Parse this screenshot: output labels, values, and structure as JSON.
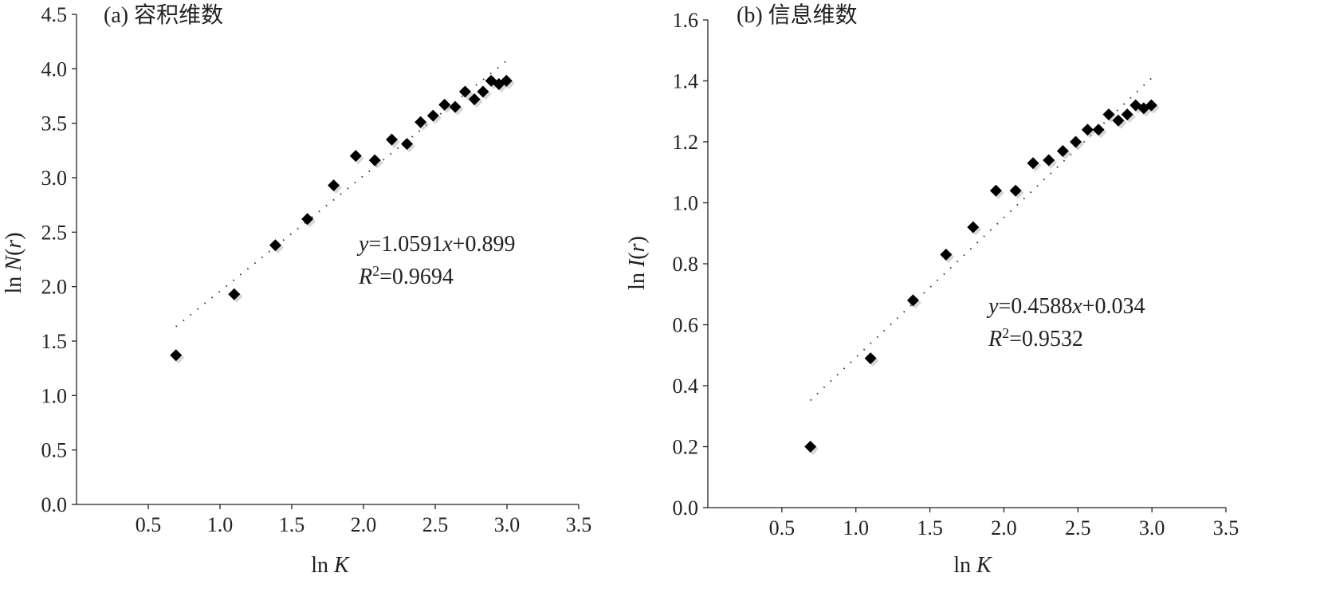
{
  "chart_data": [
    {
      "type": "scatter",
      "title": "(a) 容积维数",
      "xlabel": "ln K",
      "ylabel": "ln N(r)",
      "xlim": [
        0,
        3.5
      ],
      "ylim": [
        0,
        4.5
      ],
      "xticks": [
        "0.5",
        "1.0",
        "1.5",
        "2.0",
        "2.5",
        "3.0",
        "3.5"
      ],
      "yticks": [
        "0.0",
        "0.5",
        "1.0",
        "1.5",
        "2.0",
        "2.5",
        "3.0",
        "3.5",
        "4.0",
        "4.5"
      ],
      "grid": false,
      "series": [
        {
          "marker": "diamond",
          "x": [
            0.693,
            1.099,
            1.386,
            1.609,
            1.792,
            1.946,
            2.079,
            2.197,
            2.303,
            2.398,
            2.485,
            2.565,
            2.639,
            2.708,
            2.773,
            2.833,
            2.89,
            2.944,
            2.996
          ],
          "y": [
            1.37,
            1.93,
            2.38,
            2.62,
            2.93,
            3.2,
            3.16,
            3.35,
            3.31,
            3.51,
            3.57,
            3.67,
            3.65,
            3.79,
            3.72,
            3.79,
            3.89,
            3.86,
            3.89
          ]
        }
      ],
      "trendline": {
        "slope": 1.0591,
        "intercept": 0.899,
        "x_range": [
          0.693,
          2.996
        ],
        "style": "dotted"
      },
      "annotation": {
        "eq_y": "y",
        "eq_rest": "=1.0591",
        "eq_x": "x",
        "eq_tail": "+0.899",
        "r2_r": "R",
        "r2_sup": "2",
        "r2_val": "=0.9694"
      }
    },
    {
      "type": "scatter",
      "title": "(b) 信息维数",
      "xlabel": "ln K",
      "ylabel": "ln I(r)",
      "xlim": [
        0,
        3.5
      ],
      "ylim": [
        0,
        1.6
      ],
      "xticks": [
        "0.5",
        "1.0",
        "1.5",
        "2.0",
        "2.5",
        "3.0",
        "3.5"
      ],
      "yticks": [
        "0.0",
        "0.2",
        "0.4",
        "0.6",
        "0.8",
        "1.0",
        "1.2",
        "1.4",
        "1.6"
      ],
      "grid": false,
      "series": [
        {
          "marker": "diamond",
          "x": [
            0.693,
            1.099,
            1.386,
            1.609,
            1.792,
            1.946,
            2.079,
            2.197,
            2.303,
            2.398,
            2.485,
            2.565,
            2.639,
            2.708,
            2.773,
            2.833,
            2.89,
            2.944,
            2.996
          ],
          "y": [
            0.2,
            0.49,
            0.68,
            0.83,
            0.92,
            1.04,
            1.04,
            1.13,
            1.14,
            1.17,
            1.2,
            1.24,
            1.24,
            1.29,
            1.27,
            1.29,
            1.32,
            1.31,
            1.32
          ]
        }
      ],
      "trendline": {
        "slope": 0.4588,
        "intercept": 0.034,
        "x_range": [
          0.693,
          2.996
        ],
        "style": "dotted"
      },
      "annotation": {
        "eq_y": "y",
        "eq_rest": "=0.4588",
        "eq_x": "x",
        "eq_tail": "+0.034",
        "r2_r": "R",
        "r2_sup": "2",
        "r2_val": "=0.9532"
      }
    }
  ]
}
